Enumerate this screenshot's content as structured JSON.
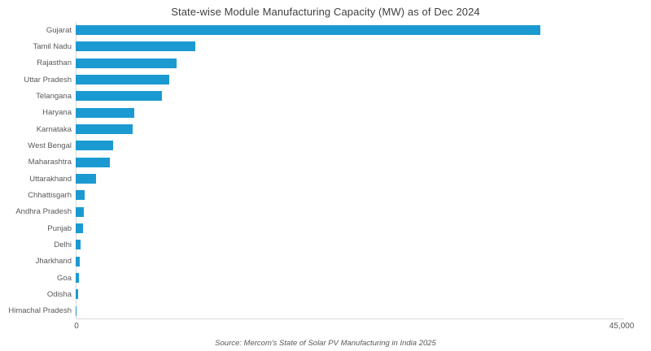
{
  "chart_data": {
    "type": "bar",
    "orientation": "horizontal",
    "title": "State-wise Module Manufacturing Capacity (MW) as of Dec 2024",
    "xlabel": "",
    "ylabel": "",
    "xlim": [
      0,
      45000
    ],
    "xticks": [
      "0",
      "45,000"
    ],
    "grid": false,
    "legend": false,
    "bar_color": "#1b9ad2",
    "axis_line_color": "#d9d9d9",
    "categories": [
      "Gujarat",
      "Tamil Nadu",
      "Rajasthan",
      "Uttar Pradesh",
      "Telangana",
      "Haryana",
      "Karnataka",
      "West Bengal",
      "Maharashtra",
      "Uttarakhand",
      "Chhattisgarh",
      "Andhra Pradesh",
      "Punjab",
      "Delhi",
      "Jharkhand",
      "Goa",
      "Odisha",
      "Himachal Pradesh"
    ],
    "values": [
      38200,
      9800,
      8300,
      7700,
      7100,
      4800,
      4700,
      3100,
      2800,
      1700,
      750,
      680,
      600,
      400,
      330,
      270,
      200,
      80
    ],
    "source": "Source: Mercom's State of Solar PV Manufacturing in India 2025"
  }
}
